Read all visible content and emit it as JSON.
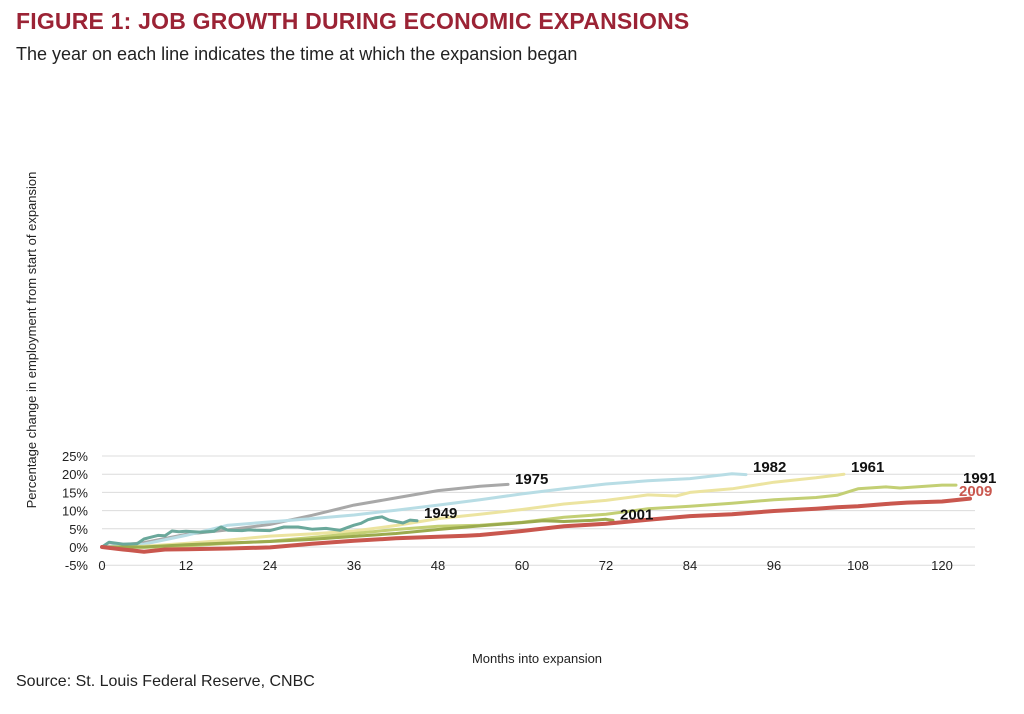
{
  "title": "FIGURE 1: JOB GROWTH DURING ECONOMIC EXPANSIONS",
  "subtitle": "The year on each line indicates the time at which the expansion began",
  "source": "Source: St. Louis Federal Reserve, CNBC",
  "chart_data": {
    "type": "line",
    "xlabel": "Months into expansion",
    "ylabel": "Percentage change in employment from start of expansion",
    "xlim": [
      0,
      125
    ],
    "ylim": [
      -5,
      25
    ],
    "x_ticks": [
      0,
      12,
      24,
      36,
      48,
      60,
      72,
      84,
      96,
      108,
      120
    ],
    "y_ticks": [
      {
        "value": 25,
        "label": "25%"
      },
      {
        "value": 20,
        "label": "20%"
      },
      {
        "value": 15,
        "label": "15%"
      },
      {
        "value": 10,
        "label": "10%"
      },
      {
        "value": 5,
        "label": "5%"
      },
      {
        "value": 0,
        "label": "0%"
      },
      {
        "value": -5,
        "label": "-5%"
      }
    ],
    "grid": "horizontal",
    "series": [
      {
        "name": "1975",
        "color": "#a8a8a8",
        "x": [
          0,
          6,
          12,
          18,
          24,
          30,
          36,
          42,
          48,
          54,
          58
        ],
        "y": [
          0,
          1.2,
          3.5,
          4.7,
          6.2,
          8.7,
          11.5,
          13.5,
          15.5,
          16.7,
          17.2
        ]
      },
      {
        "name": "1982",
        "color": "#b8dde5",
        "x": [
          0,
          6,
          12,
          18,
          24,
          30,
          36,
          42,
          48,
          54,
          60,
          66,
          72,
          78,
          84,
          90,
          92
        ],
        "y": [
          0,
          0.8,
          3.2,
          6.0,
          6.9,
          7.8,
          8.8,
          10.1,
          11.5,
          13.0,
          14.6,
          16.0,
          17.3,
          18.2,
          18.8,
          20.1,
          19.9
        ]
      },
      {
        "name": "1961",
        "color": "#ece4a0",
        "x": [
          0,
          6,
          12,
          18,
          24,
          30,
          36,
          42,
          48,
          54,
          60,
          66,
          72,
          78,
          82,
          84,
          90,
          96,
          102,
          106
        ],
        "y": [
          0,
          0.2,
          1.0,
          1.9,
          3.0,
          3.6,
          4.4,
          5.9,
          7.8,
          9.0,
          10.3,
          11.8,
          12.8,
          14.3,
          14.0,
          15.0,
          16.0,
          17.8,
          19.0,
          20.0
        ]
      },
      {
        "name": "1991",
        "color": "#c3cf74",
        "x": [
          0,
          6,
          12,
          18,
          24,
          30,
          36,
          42,
          48,
          54,
          60,
          66,
          72,
          78,
          84,
          90,
          96,
          102,
          105,
          108,
          112,
          114,
          120,
          122
        ],
        "y": [
          0,
          -0.1,
          0.3,
          1.0,
          1.6,
          2.6,
          3.7,
          4.8,
          5.7,
          6.0,
          6.8,
          8.2,
          9.0,
          10.5,
          11.2,
          12.0,
          13.0,
          13.6,
          14.2,
          16.0,
          16.5,
          16.2,
          17.0,
          17.0
        ]
      },
      {
        "name": "2001",
        "color": "#9bab4e",
        "x": [
          0,
          6,
          12,
          18,
          24,
          30,
          36,
          42,
          48,
          54,
          60,
          63,
          66,
          70,
          72,
          73
        ],
        "y": [
          0,
          0,
          0.6,
          1.1,
          1.5,
          2.1,
          2.9,
          3.7,
          4.8,
          5.8,
          6.7,
          7.2,
          7.0,
          7.3,
          7.6,
          7.3
        ]
      },
      {
        "name": "1949",
        "color": "#6aa89b",
        "x": [
          0,
          1,
          3,
          5,
          6,
          7,
          8,
          9,
          10,
          11,
          12,
          14,
          16,
          17,
          18,
          20,
          21,
          22,
          24,
          26,
          28,
          30,
          32,
          34,
          35,
          36,
          37,
          38,
          39,
          40,
          41,
          42,
          43,
          44,
          45
        ],
        "y": [
          0,
          1.3,
          0.8,
          0.9,
          2.2,
          2.7,
          3.2,
          3.1,
          4.4,
          4.2,
          4.3,
          4.1,
          4.3,
          5.5,
          4.6,
          4.5,
          4.7,
          4.6,
          4.5,
          5.5,
          5.5,
          4.9,
          5.1,
          4.6,
          5.3,
          6.0,
          6.5,
          7.5,
          8.0,
          8.3,
          7.4,
          7.0,
          6.6,
          7.4,
          7.2
        ]
      },
      {
        "name": "2009",
        "color": "#c9574e",
        "label_color": "#c9574e",
        "x": [
          0,
          3,
          6,
          9,
          12,
          18,
          24,
          30,
          36,
          42,
          48,
          52,
          54,
          60,
          66,
          72,
          78,
          84,
          90,
          96,
          99,
          102,
          105,
          108,
          112,
          115,
          120,
          124
        ],
        "y": [
          0,
          -0.7,
          -1.3,
          -0.7,
          -0.6,
          -0.4,
          -0.1,
          0.9,
          1.7,
          2.4,
          2.8,
          3.1,
          3.3,
          4.4,
          5.7,
          6.4,
          7.5,
          8.5,
          9.0,
          9.9,
          10.2,
          10.5,
          10.9,
          11.2,
          11.8,
          12.2,
          12.5,
          13.3
        ]
      }
    ],
    "label_positions": [
      {
        "name": "1975",
        "at_x": 59,
        "at_y": 17.3
      },
      {
        "name": "1982",
        "at_x": 93,
        "at_y": 20.6
      },
      {
        "name": "1961",
        "at_x": 107,
        "at_y": 20.6
      },
      {
        "name": "1991",
        "at_x": 123,
        "at_y": 17.6
      },
      {
        "name": "2001",
        "at_x": 74,
        "at_y": 7.6
      },
      {
        "name": "1949",
        "at_x": 46,
        "at_y": 7.9
      },
      {
        "name": "2009",
        "at_x": 125,
        "at_y": 14.0
      }
    ]
  }
}
